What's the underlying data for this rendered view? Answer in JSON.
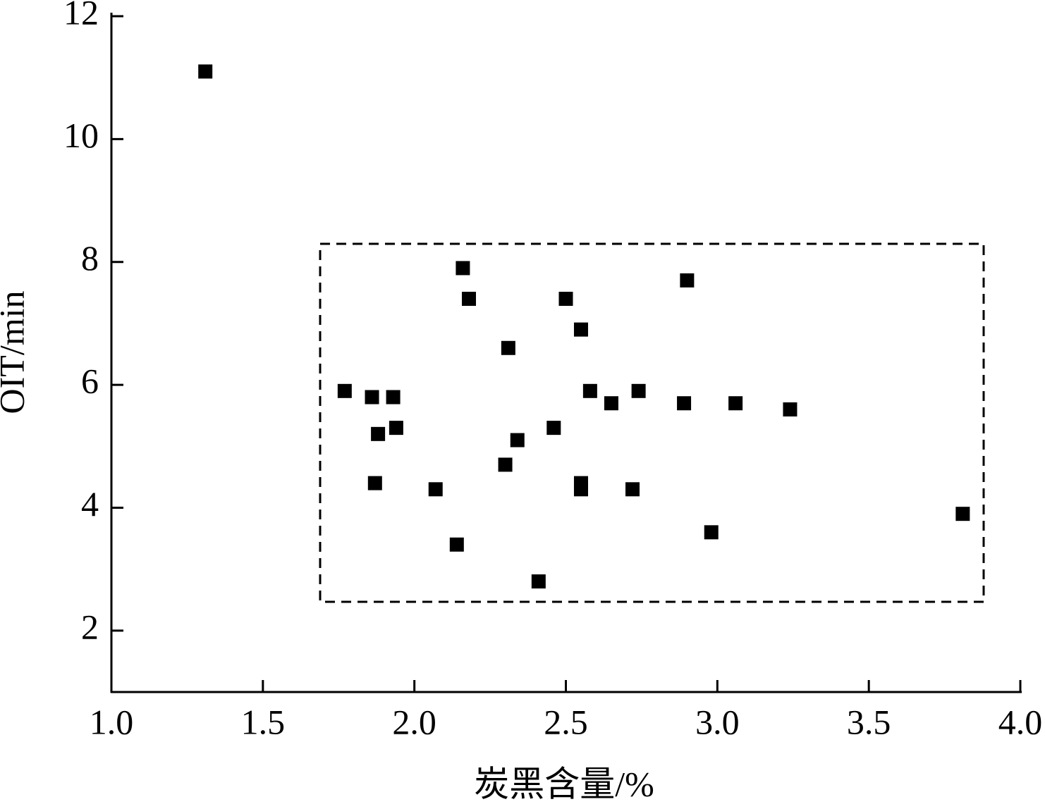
{
  "chart_data": {
    "type": "scatter",
    "xlabel": "炭黑含量/%",
    "ylabel": "OIT/min",
    "xlim": [
      1.0,
      4.0
    ],
    "ylim": [
      1,
      12
    ],
    "xticks": [
      {
        "value": 1.0,
        "label": "1.0"
      },
      1.5,
      {
        "value": 2.0,
        "label": "2.0"
      },
      2.5,
      {
        "value": 3.0,
        "label": "3.0"
      },
      3.5,
      {
        "value": 4.0,
        "label": "4.0"
      }
    ],
    "yticks": [
      2,
      4,
      6,
      8,
      10,
      12
    ],
    "color": "#000000",
    "x": [
      1.31,
      1.77,
      1.86,
      1.93,
      1.88,
      1.94,
      1.87,
      2.07,
      2.14,
      2.16,
      2.18,
      2.31,
      2.3,
      2.34,
      2.41,
      2.46,
      2.5,
      2.55,
      2.58,
      2.55,
      2.55,
      2.65,
      2.74,
      2.72,
      2.9,
      2.89,
      2.98,
      3.06,
      3.24,
      3.81
    ],
    "values": [
      11.1,
      5.9,
      5.8,
      5.8,
      5.2,
      5.3,
      4.4,
      4.3,
      3.4,
      7.9,
      7.4,
      6.6,
      4.7,
      5.1,
      2.8,
      5.3,
      7.4,
      6.9,
      5.9,
      4.4,
      4.3,
      5.7,
      5.9,
      4.3,
      7.7,
      5.7,
      3.6,
      5.7,
      5.6,
      3.9
    ]
  }
}
